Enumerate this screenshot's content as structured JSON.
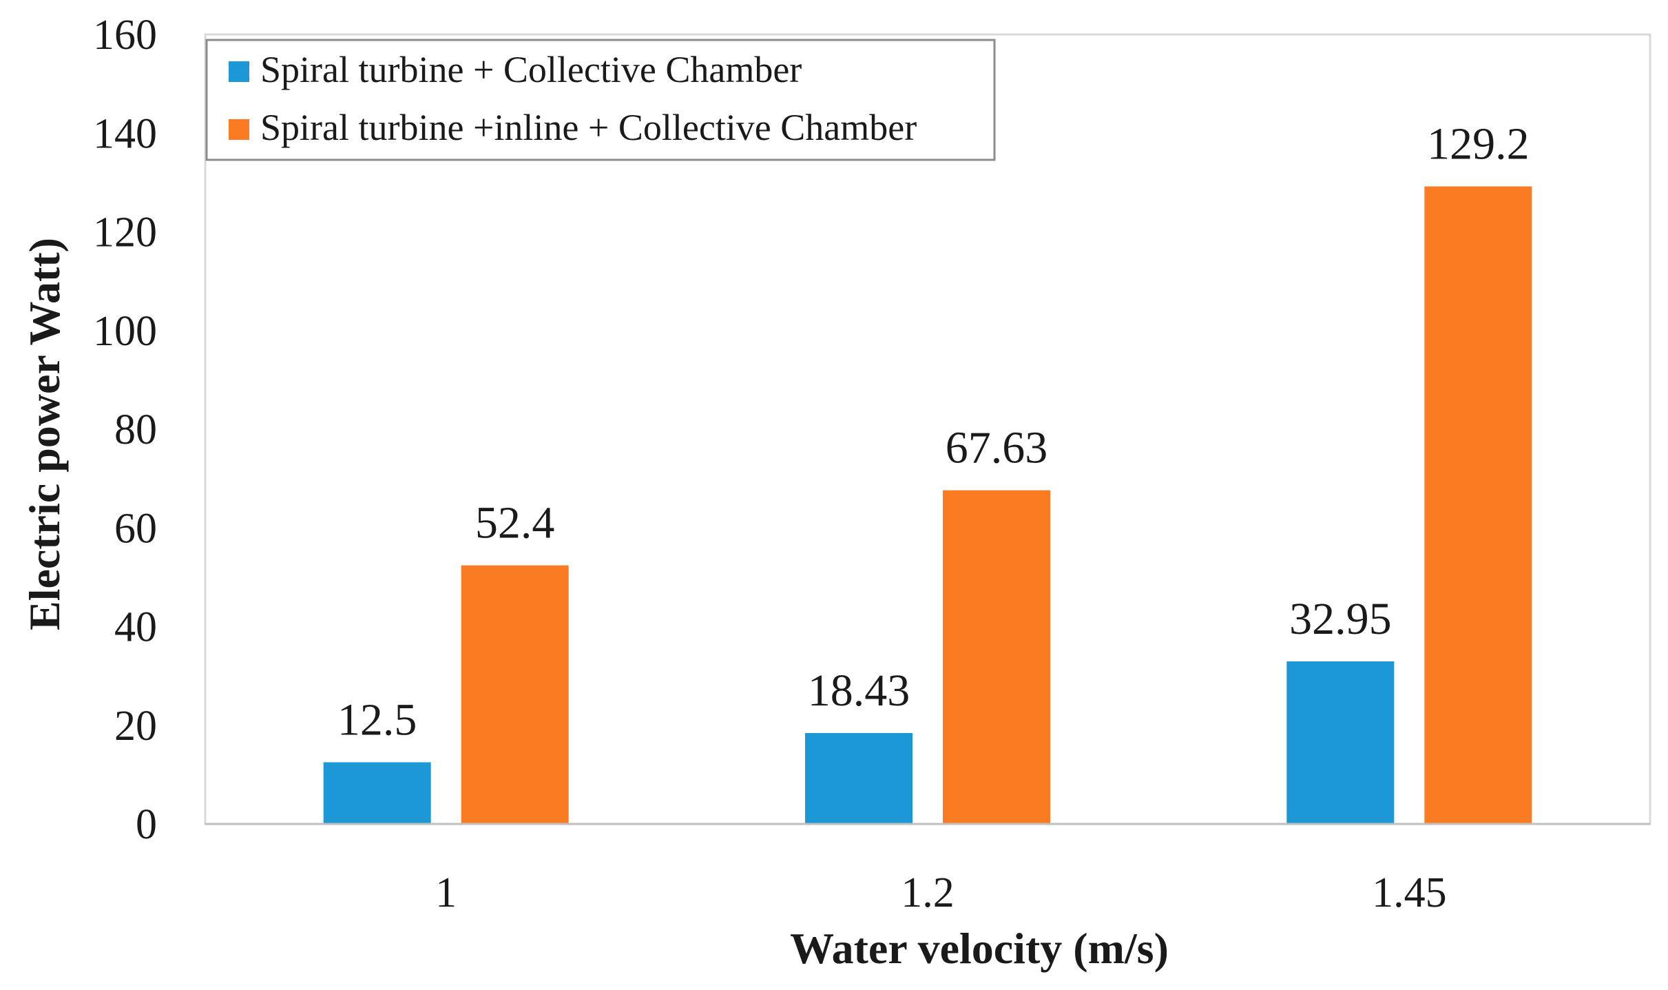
{
  "chart_data": {
    "type": "bar",
    "title": "",
    "xlabel": "Water velocity (m/s)",
    "ylabel": "Electric power Watt)",
    "categories": [
      "1",
      "1.2",
      "1.45"
    ],
    "ylim": [
      0,
      160
    ],
    "yticks": [
      0,
      20,
      40,
      60,
      80,
      100,
      120,
      140,
      160
    ],
    "ytick_labels": [
      "0",
      "20",
      "40",
      "60",
      "80",
      "100",
      "120",
      "140",
      "160"
    ],
    "grid": false,
    "legend_position": "top-left",
    "series": [
      {
        "name": "Spiral turbine + Collective Chamber",
        "color": "#1b98d5",
        "values": [
          12.5,
          18.43,
          32.95
        ],
        "labels": [
          "12.5",
          "18.43",
          "32.95"
        ]
      },
      {
        "name": "Spiral turbine +inline + Collective Chamber",
        "color": "#fb7b22",
        "values": [
          52.4,
          67.63,
          129.2
        ],
        "labels": [
          "52.4",
          "67.63",
          "129.2"
        ]
      }
    ]
  }
}
